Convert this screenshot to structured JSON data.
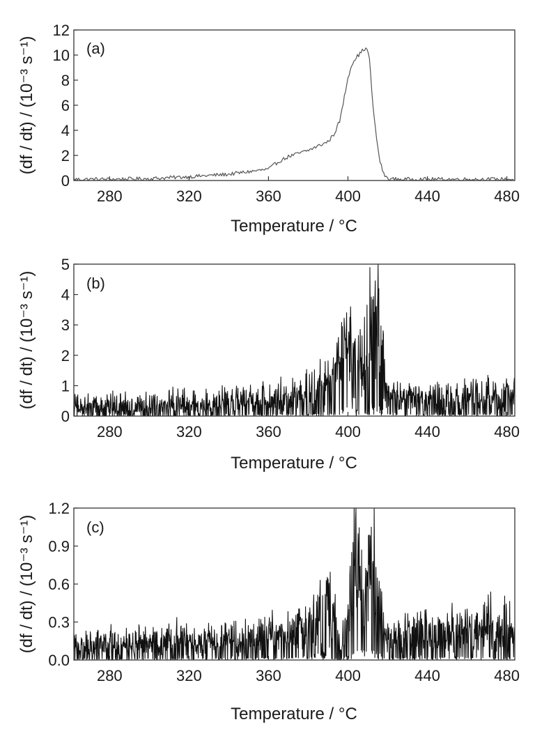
{
  "chart_data": [
    {
      "type": "line",
      "panel_label": "(a)",
      "xlabel": "Temperature / °C",
      "ylabel": "(df / dt) / (10⁻³ s⁻¹)",
      "xlim": [
        262,
        484
      ],
      "ylim": [
        0,
        12
      ],
      "xticks": [
        280,
        320,
        360,
        400,
        440,
        480
      ],
      "yticks": [
        0,
        2,
        4,
        6,
        8,
        10,
        12
      ],
      "ytick_labels": [
        "0",
        "2",
        "4",
        "6",
        "8",
        "10",
        "12"
      ],
      "grid": false,
      "series": [
        {
          "color": "#555555",
          "noisy": false,
          "x": [
            262,
            280,
            300,
            320,
            340,
            355,
            360,
            365,
            370,
            380,
            390,
            393,
            396,
            398,
            400,
            402,
            404,
            406,
            408,
            410,
            411,
            412,
            414,
            416,
            418,
            420,
            425,
            440,
            460,
            484
          ],
          "y": [
            0.1,
            0.1,
            0.15,
            0.3,
            0.5,
            0.8,
            0.9,
            1.5,
            1.9,
            2.4,
            3.1,
            3.7,
            4.8,
            6.5,
            8.2,
            9.3,
            9.8,
            10.1,
            10.5,
            10.4,
            9.5,
            7.0,
            3.8,
            1.6,
            0.5,
            0.15,
            0.1,
            0.1,
            0.1,
            0.1
          ],
          "amplitude": 0.15,
          "baseline_noise": 0.12
        }
      ]
    },
    {
      "type": "line",
      "panel_label": "(b)",
      "xlabel": "Temperature / °C",
      "ylabel": "(df / dt) / (10⁻³ s⁻¹)",
      "xlim": [
        262,
        484
      ],
      "ylim": [
        0,
        5
      ],
      "xticks": [
        280,
        320,
        360,
        400,
        440,
        480
      ],
      "yticks": [
        0,
        1,
        2,
        3,
        4,
        5
      ],
      "ytick_labels": [
        "0",
        "1",
        "2",
        "3",
        "4",
        "5"
      ],
      "grid": false,
      "series": [
        {
          "color": "#111111",
          "noisy": true,
          "x": [
            262,
            300,
            340,
            360,
            380,
            390,
            395,
            398,
            400,
            404,
            408,
            412,
            415,
            418,
            420,
            425,
            440,
            460,
            484
          ],
          "y": [
            0.15,
            0.2,
            0.3,
            0.4,
            0.7,
            1.0,
            1.8,
            2.3,
            2.0,
            1.7,
            1.6,
            3.5,
            3.9,
            1.5,
            0.6,
            0.5,
            0.45,
            0.45,
            0.45
          ],
          "amplitude": 0.45,
          "baseline_noise": 0.25
        }
      ]
    },
    {
      "type": "line",
      "panel_label": "(c)",
      "xlabel": "Temperature / °C",
      "ylabel": "(df / dt) / (10⁻³ s⁻¹)",
      "xlim": [
        262,
        484
      ],
      "ylim": [
        0,
        1.2
      ],
      "xticks": [
        280,
        320,
        360,
        400,
        440,
        480
      ],
      "yticks": [
        0,
        0.3,
        0.6,
        0.9,
        1.2
      ],
      "ytick_labels": [
        "0.0",
        "0.3",
        "0.6",
        "0.9",
        "1.2"
      ],
      "grid": false,
      "series": [
        {
          "color": "#111111",
          "noisy": true,
          "x": [
            262,
            300,
            340,
            370,
            382,
            388,
            392,
            396,
            400,
            403,
            406,
            408,
            411,
            414,
            417,
            420,
            425,
            440,
            460,
            480
          ],
          "y": [
            0.08,
            0.1,
            0.12,
            0.15,
            0.3,
            0.45,
            0.3,
            0.05,
            0.3,
            0.9,
            0.7,
            0.3,
            0.85,
            0.6,
            0.3,
            0.1,
            0.15,
            0.18,
            0.22,
            0.2
          ],
          "amplitude": 0.12,
          "baseline_noise": 0.1
        }
      ]
    }
  ]
}
